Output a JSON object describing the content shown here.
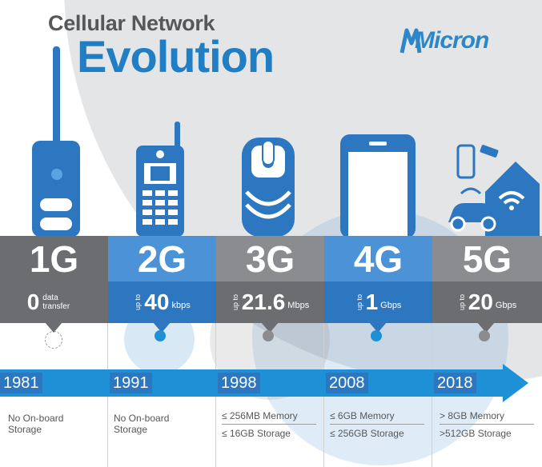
{
  "header": {
    "title_small": "Cellular Network",
    "title_large": "Evolution",
    "logo": "Micron"
  },
  "generations": [
    {
      "gen": "1G",
      "speed_value": "0",
      "speed_prefix": "",
      "speed_unit": "data transfer",
      "year": "1981",
      "memory": "No On-board",
      "storage": "Storage"
    },
    {
      "gen": "2G",
      "speed_value": "40",
      "speed_prefix": "up to",
      "speed_unit": "kbps",
      "year": "1991",
      "memory": "No On-board",
      "storage": "Storage"
    },
    {
      "gen": "3G",
      "speed_value": "21.6",
      "speed_prefix": "up to",
      "speed_unit": "Mbps",
      "year": "1998",
      "memory": "≤ 256MB Memory",
      "storage": "≤ 16GB Storage"
    },
    {
      "gen": "4G",
      "speed_value": "1",
      "speed_prefix": "up to",
      "speed_unit": "Gbps",
      "year": "2008",
      "memory": "≤ 6GB Memory",
      "storage": "≤ 256GB Storage"
    },
    {
      "gen": "5G",
      "speed_value": "20",
      "speed_prefix": "up to",
      "speed_unit": "Gbps",
      "year": "2018",
      "memory": "> 8GB Memory",
      "storage": ">512GB Storage"
    }
  ],
  "colors": {
    "blue": "#1f7ec4",
    "gray": "#6c6d70",
    "timeline": "#1e90d6"
  }
}
